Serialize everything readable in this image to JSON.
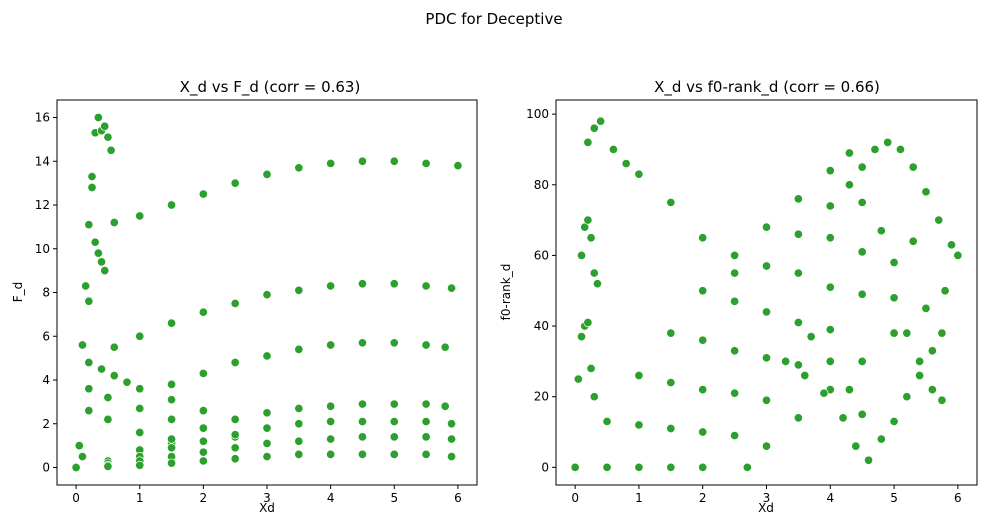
{
  "figure": {
    "suptitle": "PDC for Deceptive"
  },
  "chart_data": [
    {
      "type": "scatter",
      "title": "X_d vs F_d (corr = 0.63)",
      "xlabel": "Xd",
      "ylabel": "F_d",
      "xlim": [
        -0.3,
        6.3
      ],
      "ylim": [
        -0.8,
        16.8
      ],
      "xticks": [
        0,
        1,
        2,
        3,
        4,
        5,
        6
      ],
      "yticks": [
        0,
        2,
        4,
        6,
        8,
        10,
        12,
        14,
        16
      ],
      "grid": false,
      "color": "#2ca02c",
      "edge_color": "#ffffff",
      "series": [
        {
          "x": [
            0.6,
            1.0,
            1.5,
            2.0,
            2.5,
            3.0,
            3.5,
            4.0,
            4.5,
            5.0,
            5.5,
            6.0
          ],
          "y": [
            11.2,
            11.5,
            12.0,
            12.5,
            13.0,
            13.4,
            13.7,
            13.9,
            14.0,
            14.0,
            13.9,
            13.8
          ]
        },
        {
          "x": [
            0.6,
            1.0,
            1.5,
            2.0,
            2.5,
            3.0,
            3.5,
            4.0,
            4.5,
            5.0,
            5.5,
            5.9
          ],
          "y": [
            5.5,
            6.0,
            6.6,
            7.1,
            7.5,
            7.9,
            8.1,
            8.3,
            8.4,
            8.4,
            8.3,
            8.2
          ]
        },
        {
          "x": [
            1.5,
            2.0,
            2.5,
            3.0,
            3.5,
            4.0,
            4.5,
            5.0,
            5.5,
            5.8
          ],
          "y": [
            3.8,
            4.3,
            4.8,
            5.1,
            5.4,
            5.6,
            5.7,
            5.7,
            5.6,
            5.5
          ]
        },
        {
          "x": [
            0.05,
            0.1,
            0.15,
            0.2,
            0.25,
            0.3,
            0.35,
            0.4,
            0.45,
            0.5,
            0.55
          ],
          "y": [
            1.0,
            5.6,
            8.3,
            11.1,
            13.3,
            15.3,
            16.0,
            15.4,
            15.6,
            15.1,
            14.5
          ]
        },
        {
          "x": [
            0.1,
            0.2,
            0.25,
            0.3,
            0.35,
            0.4,
            0.45
          ],
          "y": [
            0.5,
            7.6,
            12.8,
            10.3,
            9.8,
            9.4,
            9.0
          ]
        },
        {
          "x": [
            0.2,
            0.4,
            0.6,
            0.8,
            1.0,
            1.5,
            2.0,
            2.5,
            3.0
          ],
          "y": [
            4.8,
            4.5,
            4.2,
            3.9,
            3.6,
            3.1,
            2.6,
            2.2,
            1.8
          ]
        },
        {
          "x": [
            0.2,
            0.5,
            1.0,
            1.5,
            2.0,
            2.5,
            3.0
          ],
          "y": [
            3.6,
            3.2,
            2.7,
            2.2,
            1.8,
            1.4,
            1.1
          ]
        },
        {
          "x": [
            0.2,
            0.5,
            1.0,
            1.5,
            2.0,
            2.5
          ],
          "y": [
            2.6,
            2.2,
            1.6,
            1.1,
            0.7,
            0.4
          ]
        },
        {
          "x": [
            0.0,
            0.5,
            1.0,
            1.5,
            2.0,
            2.5,
            3.0,
            3.5,
            4.0,
            4.5,
            5.0,
            5.5,
            5.8
          ],
          "y": [
            0.0,
            0.3,
            0.8,
            1.3,
            1.8,
            2.2,
            2.5,
            2.7,
            2.8,
            2.9,
            2.9,
            2.9,
            2.8
          ]
        },
        {
          "x": [
            0.0,
            0.5,
            1.0,
            1.5,
            2.0,
            2.5,
            3.0,
            3.5,
            4.0,
            4.5,
            5.0,
            5.5,
            5.9
          ],
          "y": [
            0.0,
            0.2,
            0.5,
            0.9,
            1.2,
            1.5,
            1.8,
            2.0,
            2.1,
            2.1,
            2.1,
            2.1,
            2.0
          ]
        },
        {
          "x": [
            0.0,
            0.5,
            1.0,
            1.5,
            2.0,
            2.5,
            3.0,
            3.5,
            4.0,
            4.5,
            5.0,
            5.5,
            5.9
          ],
          "y": [
            0.0,
            0.1,
            0.3,
            0.5,
            0.7,
            0.9,
            1.1,
            1.2,
            1.3,
            1.4,
            1.4,
            1.4,
            1.3
          ]
        },
        {
          "x": [
            0.0,
            0.5,
            1.0,
            1.5,
            2.0,
            2.5,
            3.0,
            3.5,
            4.0,
            4.5,
            5.0,
            5.5,
            5.9
          ],
          "y": [
            0.0,
            0.05,
            0.1,
            0.2,
            0.3,
            0.4,
            0.5,
            0.6,
            0.6,
            0.6,
            0.6,
            0.6,
            0.5
          ]
        }
      ]
    },
    {
      "type": "scatter",
      "title": "X_d vs f0-rank_d (corr = 0.66)",
      "xlabel": "Xd",
      "ylabel": "f0-rank_d",
      "xlim": [
        -0.3,
        6.3
      ],
      "ylim": [
        -5,
        104
      ],
      "xticks": [
        0,
        1,
        2,
        3,
        4,
        5,
        6
      ],
      "yticks": [
        0,
        20,
        40,
        60,
        80,
        100
      ],
      "grid": false,
      "color": "#2ca02c",
      "edge_color": "#ffffff",
      "series": [
        {
          "x": [
            0.2,
            0.3,
            0.4,
            0.6,
            0.8,
            1.0,
            1.5,
            2.0,
            2.5
          ],
          "y": [
            92,
            96,
            98,
            90,
            86,
            83,
            75,
            65,
            55
          ]
        },
        {
          "x": [
            0.1,
            0.15,
            0.2,
            0.25,
            0.3,
            0.35
          ],
          "y": [
            60,
            68,
            70,
            65,
            55,
            52
          ]
        },
        {
          "x": [
            0.05,
            0.1,
            0.15,
            0.2,
            0.25,
            0.3
          ],
          "y": [
            25,
            37,
            40,
            41,
            28,
            20
          ]
        },
        {
          "x": [
            0.0,
            0.5,
            1.0,
            1.5,
            2.0,
            2.5,
            3.0,
            3.5,
            4.0,
            4.3
          ],
          "y": [
            0,
            13,
            26,
            38,
            50,
            60,
            68,
            76,
            84,
            89
          ]
        },
        {
          "x": [
            0.5,
            1.0,
            1.5,
            2.0,
            2.5,
            3.0,
            3.5,
            4.0,
            4.3
          ],
          "y": [
            0,
            12,
            24,
            36,
            47,
            57,
            66,
            74,
            80
          ]
        },
        {
          "x": [
            1.0,
            1.5,
            2.0,
            2.5,
            3.0,
            3.5,
            4.0,
            4.5
          ],
          "y": [
            0,
            11,
            22,
            33,
            44,
            55,
            65,
            75
          ]
        },
        {
          "x": [
            1.5,
            2.0,
            2.5,
            3.0,
            3.5,
            4.0,
            4.5,
            4.8
          ],
          "y": [
            0,
            10,
            21,
            31,
            41,
            51,
            61,
            67
          ]
        },
        {
          "x": [
            2.0,
            2.5,
            3.0,
            3.5,
            4.0,
            4.5,
            5.0,
            5.3
          ],
          "y": [
            0,
            9,
            19,
            29,
            39,
            49,
            58,
            64
          ]
        },
        {
          "x": [
            2.7,
            3.0,
            3.5,
            4.0,
            4.5,
            5.0,
            5.5,
            5.8
          ],
          "y": [
            0,
            6,
            14,
            22,
            30,
            38,
            45,
            50
          ]
        },
        {
          "x": [
            4.5,
            4.7,
            4.9,
            5.1,
            5.3,
            5.5,
            5.7,
            5.9,
            6.0
          ],
          "y": [
            85,
            90,
            92,
            90,
            85,
            78,
            70,
            63,
            60
          ]
        },
        {
          "x": [
            3.3,
            3.6,
            3.9,
            4.2,
            4.4,
            4.6,
            4.8,
            5.0,
            5.2,
            5.4,
            5.6,
            5.75
          ],
          "y": [
            30,
            26,
            21,
            14,
            6,
            2,
            8,
            13,
            20,
            26,
            33,
            38
          ]
        },
        {
          "x": [
            3.7,
            4.0,
            4.3,
            4.5
          ],
          "y": [
            37,
            30,
            22,
            15
          ]
        },
        {
          "x": [
            5.0,
            5.2,
            5.4,
            5.6,
            5.75
          ],
          "y": [
            48,
            38,
            30,
            22,
            19
          ]
        }
      ]
    }
  ]
}
